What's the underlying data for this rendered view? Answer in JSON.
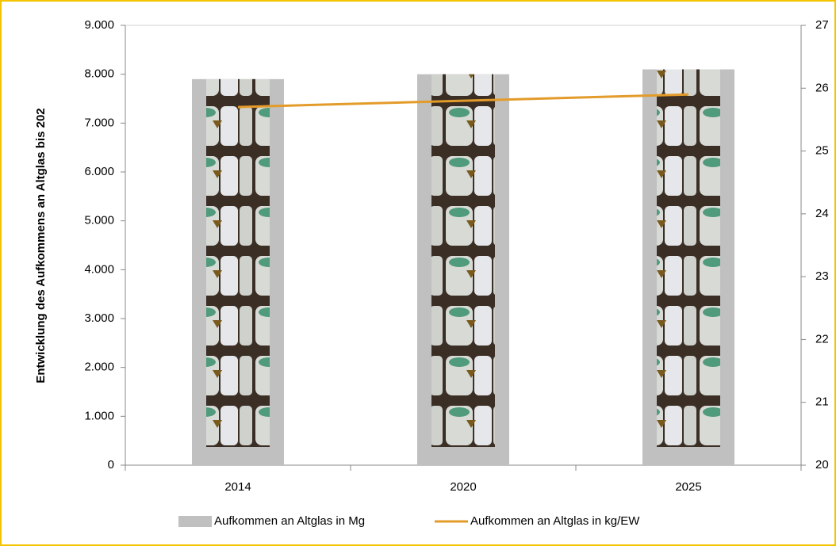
{
  "chart_data": {
    "type": "bar_line",
    "y_label": "Entwicklung des Aufkommens an Altglas bis 202",
    "categories": [
      "2014",
      "2020",
      "2025"
    ],
    "series": [
      {
        "name": "Aufkommen an Altglas in Mg",
        "type": "bar",
        "color": "#c0c0c0",
        "values": [
          7900,
          8000,
          8100
        ]
      },
      {
        "name": "Aufkommen an Altglas in kg/EW",
        "type": "line",
        "color": "#e39b2a",
        "axis": "y2",
        "values": [
          25.7,
          25.8,
          25.9
        ]
      }
    ],
    "ylim": [
      0,
      9000
    ],
    "yticks": [
      0,
      {
        "value": 1000,
        "label": "1.000"
      },
      {
        "value": 2000,
        "label": "2.000"
      },
      {
        "value": 3000,
        "label": "3.000"
      },
      {
        "value": 4000,
        "label": "4.000"
      },
      {
        "value": 5000,
        "label": "5.000"
      },
      {
        "value": 6000,
        "label": "6.000"
      },
      {
        "value": 7000,
        "label": "7.000"
      },
      {
        "value": 8000,
        "label": "8.000"
      },
      {
        "value": 9000,
        "label": "9.000"
      }
    ],
    "y2lim": [
      20,
      27
    ],
    "y2ticks": [
      20,
      21,
      22,
      23,
      24,
      25,
      26,
      27
    ],
    "legend": "bottom"
  }
}
